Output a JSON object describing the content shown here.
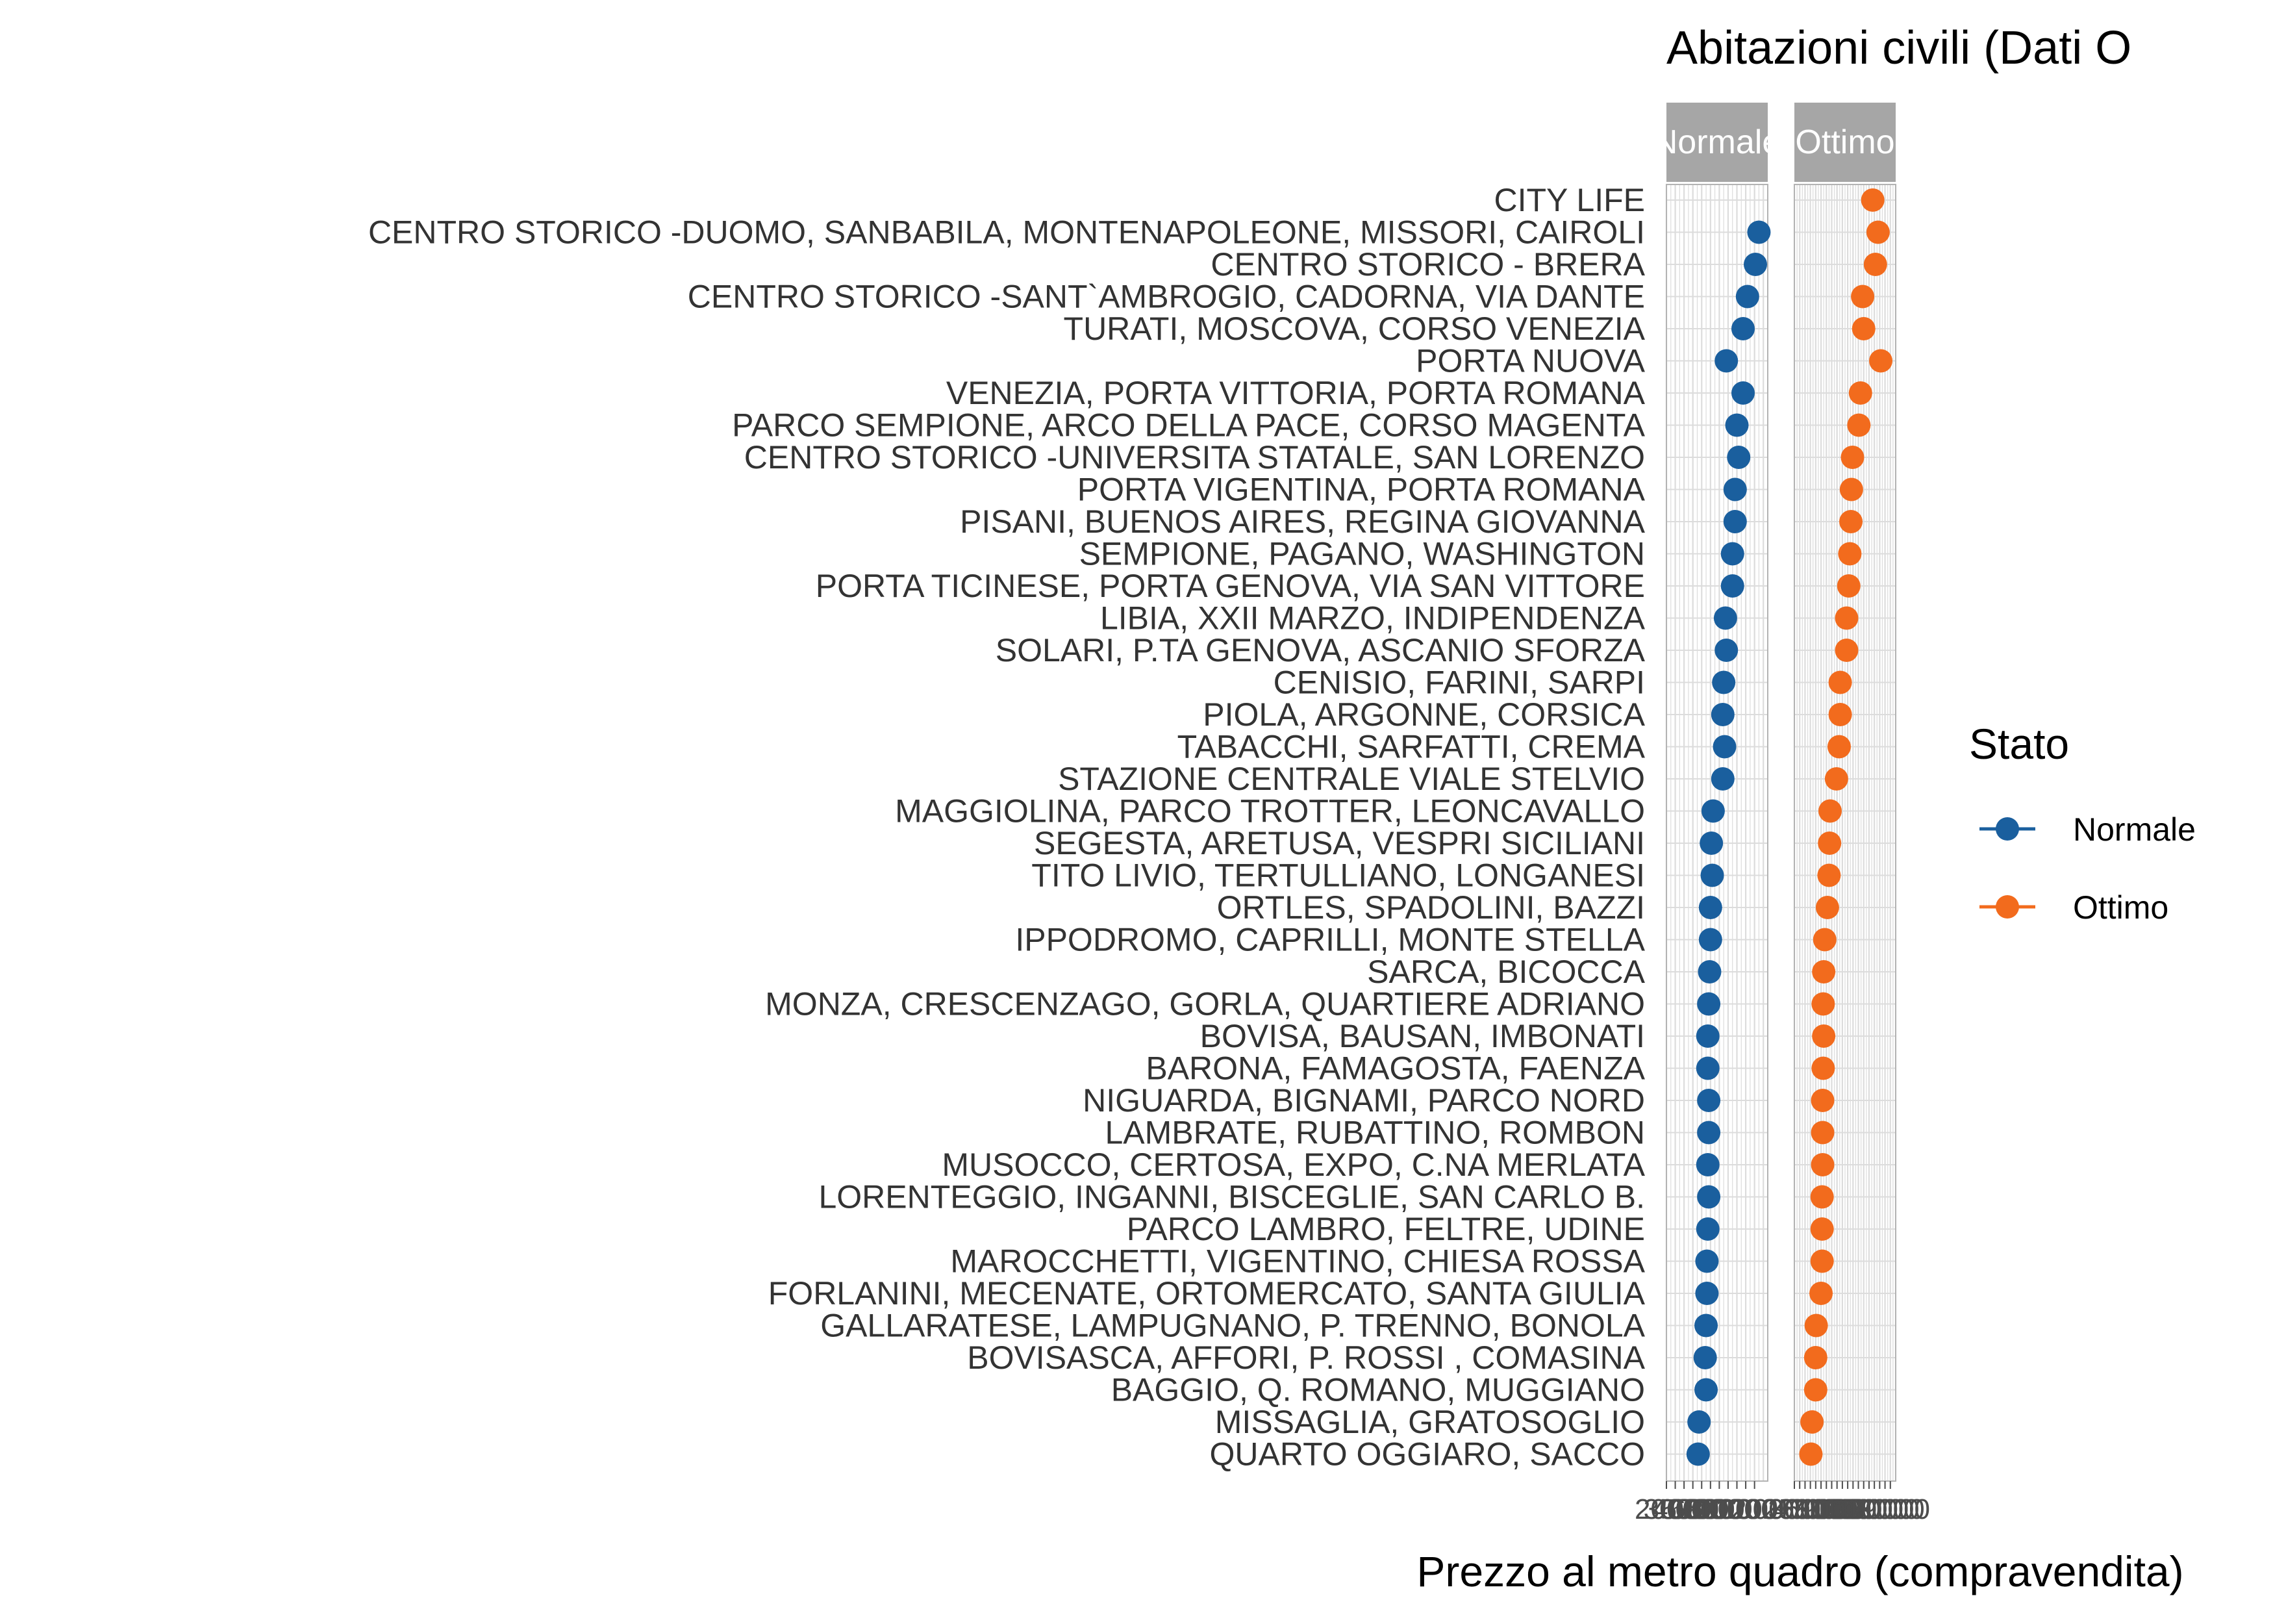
{
  "chart_data": {
    "type": "scatter",
    "title": "Abitazioni civili  (Dati O",
    "xlabel": "Prezzo al metro quadro (compravendita)",
    "ylabel": "",
    "x_tick_labels": {
      "Normale": [
        "2",
        "3",
        "4",
        "5",
        "6",
        "7",
        "8",
        "9",
        "10",
        "11",
        "12"
      ],
      "Ottimo": [
        "2",
        "3",
        "4",
        "5",
        "6",
        "7",
        "8",
        "9",
        "10",
        "11",
        "12",
        "13",
        "14",
        "15",
        "16",
        "17",
        "18",
        "19",
        "20"
      ]
    },
    "facets": [
      {
        "name": "Normale",
        "strip_label": "Normale",
        "xlim": [
          2000,
          13500
        ]
      },
      {
        "name": "Ottimo",
        "strip_label": "Ottimo",
        "xlim": [
          2000,
          21000
        ]
      }
    ],
    "legend": {
      "title": "Stato",
      "position": "right",
      "entries": [
        {
          "name": "Normale",
          "color": "#1a5f9e"
        },
        {
          "name": "Ottimo",
          "color": "#f26b1d"
        }
      ]
    },
    "categories": [
      "CITY LIFE",
      "CENTRO STORICO -DUOMO, SANBABILA, MONTENAPOLEONE, MISSORI, CAIROLI",
      "CENTRO STORICO - BRERA",
      "CENTRO STORICO -SANT`AMBROGIO, CADORNA, VIA DANTE",
      "TURATI, MOSCOVA, CORSO VENEZIA",
      "PORTA NUOVA",
      "VENEZIA, PORTA VITTORIA, PORTA ROMANA",
      "PARCO SEMPIONE, ARCO DELLA PACE, CORSO MAGENTA",
      "CENTRO STORICO -UNIVERSITA STATALE, SAN LORENZO",
      "PORTA VIGENTINA, PORTA ROMANA",
      "PISANI, BUENOS AIRES, REGINA GIOVANNA",
      "SEMPIONE, PAGANO, WASHINGTON",
      "PORTA TICINESE, PORTA GENOVA, VIA SAN VITTORE",
      "LIBIA, XXII MARZO, INDIPENDENZA",
      "SOLARI, P.TA GENOVA, ASCANIO SFORZA",
      "CENISIO, FARINI, SARPI",
      "PIOLA, ARGONNE, CORSICA",
      "TABACCHI, SARFATTI, CREMA",
      "STAZIONE CENTRALE VIALE STELVIO",
      "MAGGIOLINA, PARCO TROTTER, LEONCAVALLO",
      "SEGESTA, ARETUSA, VESPRI SICILIANI",
      "TITO LIVIO, TERTULLIANO, LONGANESI",
      "ORTLES, SPADOLINI, BAZZI",
      "IPPODROMO, CAPRILLI, MONTE STELLA",
      "SARCA, BICOCCA",
      "MONZA, CRESCENZAGO, GORLA, QUARTIERE ADRIANO",
      "BOVISA, BAUSAN, IMBONATI",
      "BARONA, FAMAGOSTA, FAENZA",
      "NIGUARDA, BIGNAMI, PARCO NORD",
      "LAMBRATE, RUBATTINO, ROMBON",
      "MUSOCCO, CERTOSA, EXPO, C.NA MERLATA",
      "LORENTEGGIO, INGANNI, BISCEGLIE, SAN CARLO B.",
      "PARCO LAMBRO, FELTRE, UDINE",
      "MAROCCHETTI, VIGENTINO, CHIESA ROSSA",
      "FORLANINI, MECENATE, ORTOMERCATO, SANTA GIULIA",
      "GALLARATESE, LAMPUGNANO, P. TRENNO, BONOLA",
      "BOVISASCA, AFFORI, P. ROSSI , COMASINA",
      "BAGGIO, Q. ROMANO, MUGGIANO",
      "MISSAGLIA, GRATOSOGLIO",
      "QUARTO OGGIARO, SACCO"
    ],
    "series": [
      {
        "name": "Normale",
        "color": "#1a5f9e",
        "values": [
          null,
          12500,
          12100,
          11200,
          10700,
          8800,
          10700,
          10000,
          10200,
          9800,
          9800,
          9500,
          9500,
          8700,
          8800,
          8500,
          8400,
          8600,
          8400,
          7300,
          7100,
          7200,
          7000,
          7000,
          6900,
          6800,
          6700,
          6700,
          6800,
          6800,
          6700,
          6800,
          6700,
          6600,
          6600,
          6500,
          6400,
          6500,
          5700,
          5600
        ],
        "range_low": [
          null,
          12300,
          11900,
          11000,
          10500,
          8600,
          10500,
          9800,
          10000,
          9600,
          9600,
          9300,
          9300,
          8500,
          8600,
          8300,
          8200,
          8400,
          8200,
          7100,
          6900,
          7000,
          6800,
          6800,
          6700,
          6600,
          6500,
          6500,
          6600,
          6600,
          6500,
          6600,
          6500,
          6400,
          6400,
          6300,
          6200,
          6300,
          5500,
          5400
        ],
        "range_high": [
          null,
          12700,
          12300,
          11400,
          10900,
          9000,
          10900,
          10200,
          10400,
          10000,
          10000,
          9700,
          9700,
          8900,
          9000,
          8700,
          8600,
          8800,
          8600,
          7500,
          7300,
          7400,
          7200,
          7200,
          7100,
          7000,
          6900,
          6900,
          7000,
          7000,
          6900,
          7000,
          6900,
          6800,
          6800,
          6700,
          6600,
          6700,
          5900,
          5800
        ]
      },
      {
        "name": "Ottimo",
        "color": "#f26b1d",
        "values": [
          16700,
          17700,
          17200,
          14800,
          15000,
          18200,
          14400,
          14100,
          12900,
          12700,
          12600,
          12400,
          12200,
          11800,
          11800,
          10600,
          10600,
          10400,
          9900,
          8700,
          8600,
          8500,
          8200,
          7700,
          7500,
          7400,
          7500,
          7400,
          7300,
          7300,
          7300,
          7200,
          7200,
          7200,
          7000,
          6100,
          6000,
          6000,
          5300,
          5100
        ],
        "range_low": [
          16300,
          17300,
          16700,
          14400,
          14600,
          17100,
          14000,
          13700,
          12500,
          12300,
          12200,
          12000,
          11800,
          11400,
          11400,
          10200,
          10200,
          10000,
          9500,
          8300,
          8200,
          8100,
          7800,
          7300,
          7100,
          7000,
          7100,
          7000,
          6900,
          6900,
          6900,
          6800,
          6800,
          6800,
          6600,
          5700,
          5600,
          5600,
          4900,
          4700
        ],
        "range_high": [
          17100,
          18100,
          17900,
          15200,
          15400,
          19600,
          14800,
          14500,
          13300,
          13100,
          13000,
          12800,
          12600,
          12200,
          12200,
          11000,
          11000,
          10800,
          10300,
          9100,
          9000,
          8900,
          8600,
          8100,
          7900,
          7800,
          7900,
          7800,
          7700,
          7700,
          7700,
          7600,
          7600,
          7600,
          7400,
          6500,
          6400,
          6400,
          5700,
          5500
        ]
      }
    ],
    "grid": true
  }
}
